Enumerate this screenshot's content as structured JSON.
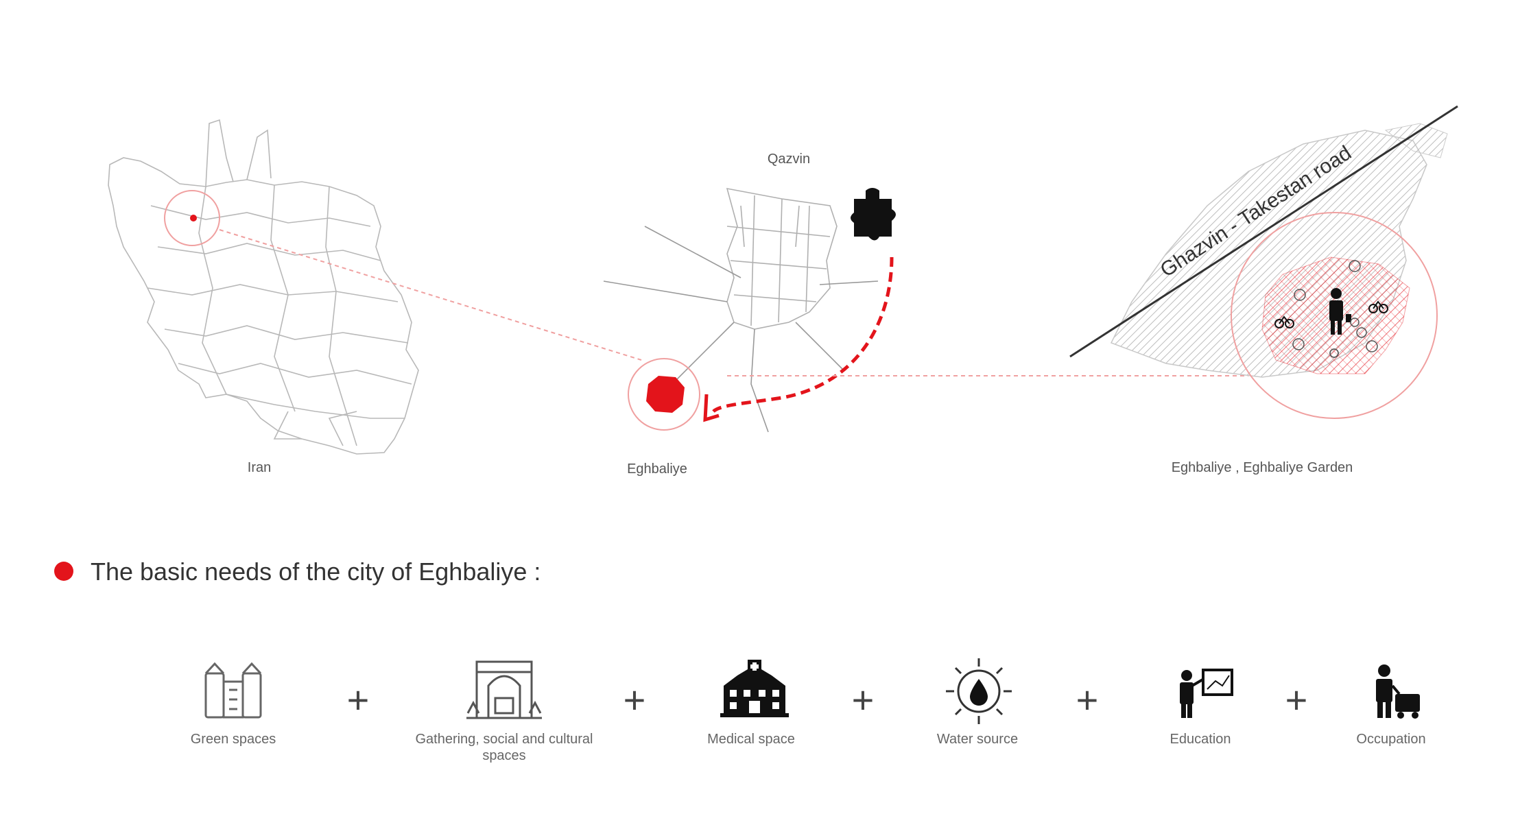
{
  "maps": {
    "iran_label": "Iran",
    "qazvin_label": "Qazvin",
    "eghbaliye_label": "Eghbaliye",
    "garden_label": "Eghbaliye , Eghbaliye Garden",
    "road_label": "Ghazvin - Takestan road"
  },
  "heading": "The basic needs of the city of Eghbaliye :",
  "accent_color": "#e3141b",
  "needs": [
    {
      "label": "Green spaces",
      "icon": "green-space-icon"
    },
    {
      "label": "Gathering, social and cultural",
      "label2": "spaces",
      "icon": "cultural-gate-icon"
    },
    {
      "label": "Medical space",
      "icon": "hospital-icon"
    },
    {
      "label": "Water source",
      "icon": "water-source-icon"
    },
    {
      "label": "Education",
      "icon": "teacher-board-icon"
    },
    {
      "label": "Occupation",
      "icon": "worker-icon"
    }
  ],
  "plus_sign": "+"
}
